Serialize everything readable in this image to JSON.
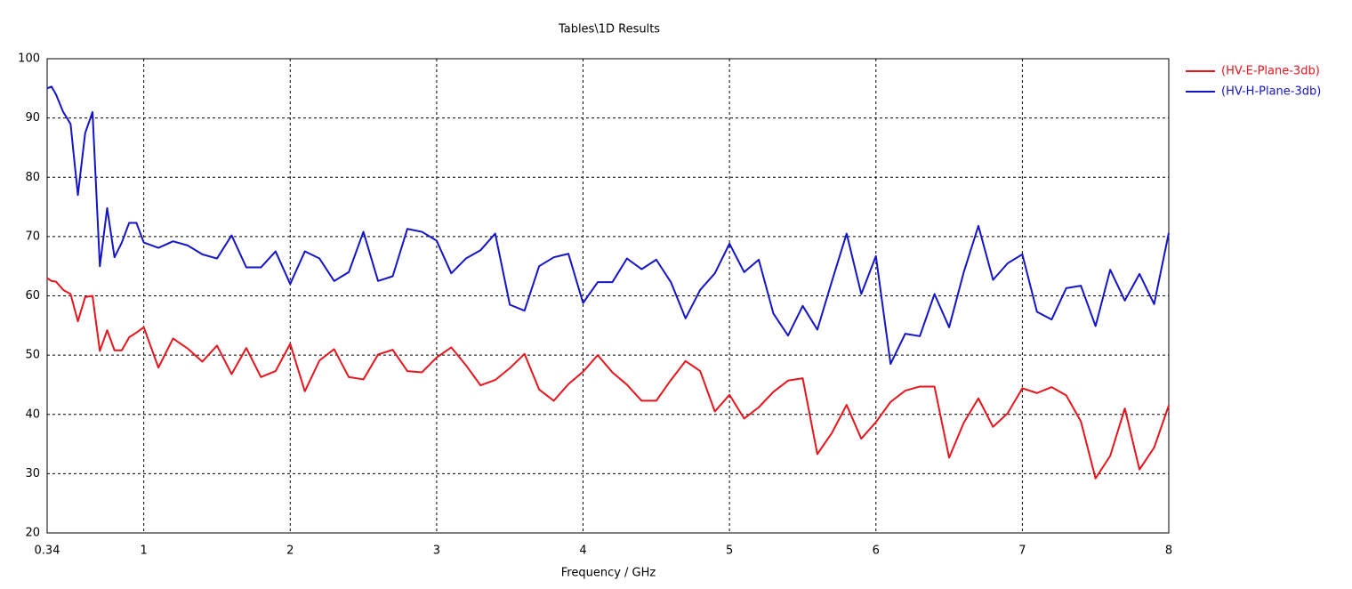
{
  "chart_data": {
    "type": "line",
    "title": "Tables\\1D Results",
    "xlabel": "Frequency / GHz",
    "x": [
      0.34,
      0.37,
      0.4,
      0.45,
      0.5,
      0.55,
      0.6,
      0.65,
      0.7,
      0.75,
      0.8,
      0.85,
      0.9,
      0.95,
      1,
      1.1,
      1.2,
      1.3,
      1.4,
      1.5,
      1.6,
      1.7,
      1.8,
      1.9,
      2,
      2.1,
      2.2,
      2.3,
      2.4,
      2.5,
      2.6,
      2.7,
      2.8,
      2.9,
      3,
      3.1,
      3.2,
      3.3,
      3.4,
      3.5,
      3.6,
      3.7,
      3.8,
      3.9,
      4,
      4.1,
      4.2,
      4.3,
      4.4,
      4.5,
      4.6,
      4.7,
      4.8,
      4.9,
      5,
      5.1,
      5.2,
      5.3,
      5.4,
      5.5,
      5.6,
      5.7,
      5.8,
      5.9,
      6,
      6.1,
      6.2,
      6.3,
      6.4,
      6.5,
      6.6,
      6.7,
      6.8,
      6.9,
      7,
      7.1,
      7.2,
      7.3,
      7.4,
      7.5,
      7.6,
      7.7,
      7.8,
      7.9,
      8
    ],
    "series": [
      {
        "name": "(HV-E-Plane-3db)",
        "color": "#e8141c",
        "values": [
          63,
          62.5,
          62.4,
          61,
          60.3,
          55.7,
          59.8,
          60,
          50.7,
          54.2,
          50.8,
          50.8,
          53,
          53.8,
          54.7,
          47.9,
          52.8,
          51.1,
          48.9,
          51.6,
          46.8,
          51.2,
          46.3,
          47.3,
          51.9,
          43.9,
          49.1,
          51,
          46.3,
          45.9,
          50.1,
          50.9,
          47.3,
          47.1,
          49.6,
          51.3,
          48.3,
          44.9,
          45.8,
          47.8,
          50.2,
          44.2,
          42.3,
          45.1,
          47.2,
          50,
          47.1,
          45,
          42.3,
          42.3,
          45.8,
          49,
          47.3,
          40.5,
          43.3,
          39.3,
          41.2,
          43.8,
          45.7,
          46.1,
          33.3,
          36.9,
          41.6,
          35.9,
          38.7,
          42.1,
          44,
          44.7,
          44.7,
          32.7,
          38.6,
          42.7,
          37.9,
          40.2,
          44.4,
          43.6,
          44.6,
          43.2,
          38.8,
          29.2,
          33,
          41,
          30.7,
          34.4,
          41.5
        ]
      },
      {
        "name": "(HV-H-Plane-3db)",
        "color": "#1414c8",
        "values": [
          95,
          95.3,
          94,
          91,
          89,
          77,
          87.5,
          91,
          65,
          74.8,
          66.5,
          69,
          72.3,
          72.3,
          69,
          68.1,
          69.2,
          68.5,
          67,
          66.3,
          70.2,
          64.8,
          64.8,
          67.5,
          62,
          67.5,
          66.3,
          62.5,
          64,
          70.8,
          62.5,
          63.3,
          71.3,
          70.8,
          69.3,
          63.8,
          66.3,
          67.7,
          70.5,
          58.5,
          57.5,
          65,
          66.5,
          67.1,
          58.8,
          62.3,
          62.3,
          66.3,
          64.5,
          66.1,
          62.3,
          56.2,
          61,
          63.8,
          68.8,
          64,
          66.1,
          57,
          53.3,
          58.3,
          54.3,
          62.5,
          70.5,
          60.3,
          66.7,
          48.5,
          53.6,
          53.2,
          60.3,
          54.7,
          64,
          71.8,
          62.7,
          65.5,
          67,
          57.3,
          56,
          61.3,
          61.7,
          54.9,
          64.4,
          59.2,
          63.7,
          58.6,
          70.6
        ]
      }
    ],
    "xlim": [
      0.34,
      8
    ],
    "xticks": [
      0.34,
      1,
      2,
      3,
      4,
      5,
      6,
      7,
      8
    ],
    "ylim": [
      20,
      100
    ],
    "yticks": [
      20,
      30,
      40,
      50,
      60,
      70,
      80,
      90,
      100
    ],
    "grid": true,
    "legend": "right"
  }
}
